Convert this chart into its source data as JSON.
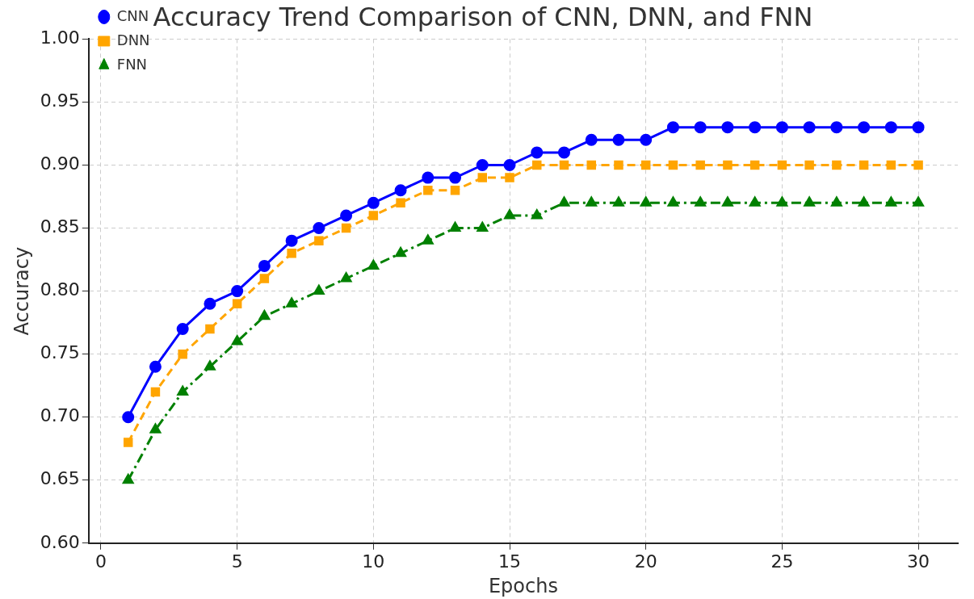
{
  "chart_data": {
    "type": "line",
    "title": "Accuracy Trend Comparison of CNN, DNN, and FNN",
    "xlabel": "Epochs",
    "ylabel": "Accuracy",
    "x": [
      1,
      2,
      3,
      4,
      5,
      6,
      7,
      8,
      9,
      10,
      11,
      12,
      13,
      14,
      15,
      16,
      17,
      18,
      19,
      20,
      21,
      22,
      23,
      24,
      25,
      26,
      27,
      28,
      29,
      30
    ],
    "series": [
      {
        "name": "CNN",
        "color": "#0000ff",
        "marker": "circle",
        "line_style": "solid",
        "values": [
          0.7,
          0.74,
          0.77,
          0.79,
          0.8,
          0.82,
          0.84,
          0.85,
          0.86,
          0.87,
          0.88,
          0.89,
          0.89,
          0.9,
          0.9,
          0.91,
          0.91,
          0.92,
          0.92,
          0.92,
          0.93,
          0.93,
          0.93,
          0.93,
          0.93,
          0.93,
          0.93,
          0.93,
          0.93,
          0.93
        ]
      },
      {
        "name": "DNN",
        "color": "#ffa500",
        "marker": "square",
        "line_style": "dashed",
        "values": [
          0.68,
          0.72,
          0.75,
          0.77,
          0.79,
          0.81,
          0.83,
          0.84,
          0.85,
          0.86,
          0.87,
          0.88,
          0.88,
          0.89,
          0.89,
          0.9,
          0.9,
          0.9,
          0.9,
          0.9,
          0.9,
          0.9,
          0.9,
          0.9,
          0.9,
          0.9,
          0.9,
          0.9,
          0.9,
          0.9
        ]
      },
      {
        "name": "FNN",
        "color": "#008000",
        "marker": "triangle",
        "line_style": "dashdot",
        "values": [
          0.65,
          0.69,
          0.72,
          0.74,
          0.76,
          0.78,
          0.79,
          0.8,
          0.81,
          0.82,
          0.83,
          0.84,
          0.85,
          0.85,
          0.86,
          0.86,
          0.87,
          0.87,
          0.87,
          0.87,
          0.87,
          0.87,
          0.87,
          0.87,
          0.87,
          0.87,
          0.87,
          0.87,
          0.87,
          0.87
        ]
      }
    ],
    "xlim": [
      -0.45,
      31.45
    ],
    "xticks": [
      0,
      5,
      10,
      15,
      20,
      25,
      30
    ],
    "ylim": [
      0.6,
      1.0
    ],
    "yticks": [
      {
        "value": 0.6,
        "label": "0.60"
      },
      {
        "value": 0.65,
        "label": "0.65"
      },
      {
        "value": 0.7,
        "label": "0.70"
      },
      {
        "value": 0.75,
        "label": "0.75"
      },
      {
        "value": 0.8,
        "label": "0.80"
      },
      {
        "value": 0.85,
        "label": "0.85"
      },
      {
        "value": 0.9,
        "label": "0.90"
      },
      {
        "value": 0.95,
        "label": "0.95"
      },
      {
        "value": 1.0,
        "label": "1.00"
      }
    ],
    "grid": true,
    "legend": "top left"
  }
}
